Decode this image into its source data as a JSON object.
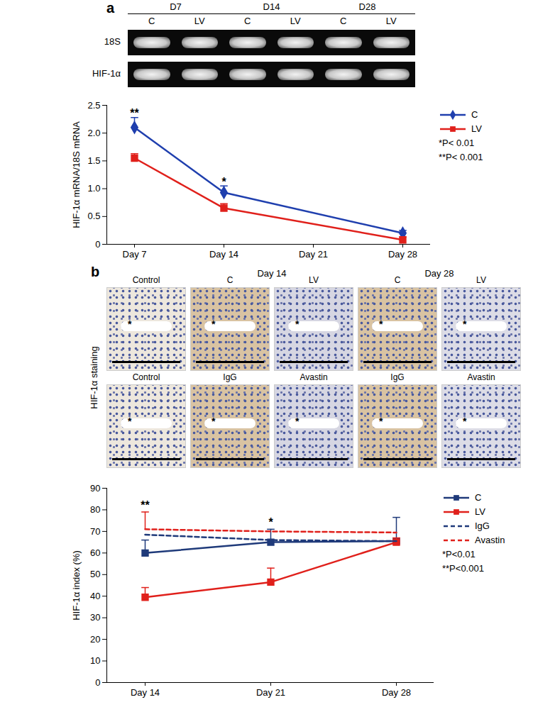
{
  "chart_data": [
    {
      "type": "line",
      "categories": [
        "Day 7",
        "Day 14",
        "Day 21",
        "Day 28"
      ],
      "ylabel": "HIF-1α mRNA/18S mRNA",
      "ylim": [
        0,
        2.5
      ],
      "yticks": [
        0,
        0.5,
        {
          "value": 1,
          "label": "1.0"
        },
        1.5,
        {
          "value": 2,
          "label": "2.0"
        },
        2.5
      ],
      "legend": "right",
      "series": [
        {
          "name": "C",
          "color": "#1f3fae",
          "marker": "diamond",
          "line_style": "solid",
          "values": [
            2.1,
            0.93,
            null,
            0.2
          ],
          "errors": [
            0.18,
            0.12,
            null,
            0.05
          ]
        },
        {
          "name": "LV",
          "color": "#e0201b",
          "marker": "square",
          "line_style": "solid",
          "values": [
            1.55,
            0.65,
            null,
            0.08
          ],
          "errors": [
            0.08,
            0.08,
            null,
            0.05
          ]
        }
      ],
      "annotations": [
        {
          "x": "Day 7",
          "y": 2.36,
          "text": "**"
        },
        {
          "x": "Day 14",
          "y": 1.12,
          "text": "*"
        }
      ],
      "notes": [
        "*P< 0.01",
        "**P< 0.001"
      ]
    },
    {
      "type": "line",
      "categories": [
        "Day 14",
        "Day 21",
        "Day 28"
      ],
      "ylabel": "HIF-1α index (%)",
      "ylim": [
        0,
        90
      ],
      "yticks": [
        0,
        10,
        20,
        30,
        40,
        50,
        60,
        70,
        80,
        90
      ],
      "legend": "right",
      "series": [
        {
          "name": "C",
          "color": "#1f3a7a",
          "marker": "square",
          "line_style": "solid",
          "values": [
            60,
            65,
            65.5
          ],
          "errors": [
            6,
            6,
            11
          ]
        },
        {
          "name": "LV",
          "color": "#e0201b",
          "marker": "square",
          "line_style": "solid",
          "values": [
            39.5,
            46.5,
            65
          ],
          "errors": [
            4.5,
            6.5,
            2
          ]
        },
        {
          "name": "IgG",
          "color": "#1f3a7a",
          "marker": "none",
          "line_style": "dashed",
          "values": [
            68.5,
            66,
            65.5
          ],
          "errors": [
            null,
            null,
            null
          ]
        },
        {
          "name": "Avastin",
          "color": "#e0201b",
          "marker": "none",
          "line_style": "dashed",
          "values": [
            71,
            70,
            69.5
          ],
          "errors": [
            8,
            null,
            null
          ]
        }
      ],
      "annotations": [
        {
          "x": "Day 14",
          "y": 82,
          "text": "**"
        },
        {
          "x": "Day 21",
          "y": 74,
          "text": "*"
        }
      ],
      "notes": [
        "*P<0.01",
        "**P<0.001"
      ]
    }
  ],
  "figure": {
    "panel_labels": [
      "a",
      "b"
    ],
    "gel": {
      "groups": [
        "D7",
        "D14",
        "D28"
      ],
      "lanes": [
        "C",
        "LV",
        "C",
        "LV",
        "C",
        "LV"
      ],
      "rows": [
        "18S",
        "HIF-1α"
      ]
    },
    "staining": {
      "row_label": "HIF-1α staining",
      "headers": [
        "Day 14",
        "Day 28"
      ],
      "rows": [
        [
          "Control",
          "C",
          "LV",
          "C",
          "LV"
        ],
        [
          "Control",
          "IgG",
          "Avastin",
          "IgG",
          "Avastin"
        ]
      ],
      "lumen_mark": "*"
    }
  }
}
